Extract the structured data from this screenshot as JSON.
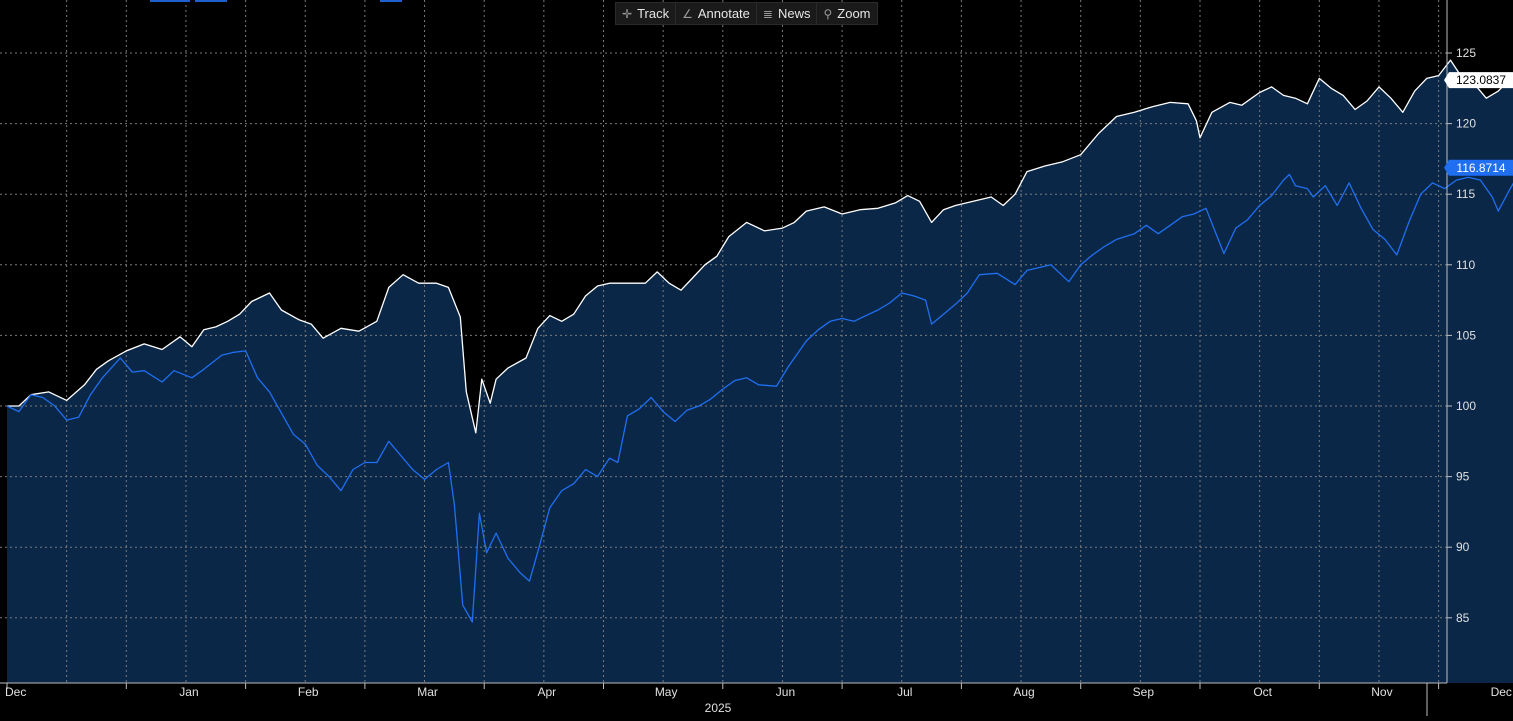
{
  "toolbar": {
    "track_label": "Track",
    "annotate_label": "Annotate",
    "news_label": "News",
    "zoom_label": "Zoom"
  },
  "colors": {
    "background": "#000000",
    "fill": "#0a2748",
    "white_series": "#ffffff",
    "blue_series": "#1f6ff0",
    "grid": "#7a7a7a"
  },
  "chart_data": {
    "type": "line",
    "xlabel": "2025",
    "ylim": [
      80,
      128
    ],
    "yticks": [
      85,
      90,
      95,
      100,
      105,
      110,
      115,
      120,
      125
    ],
    "month_labels": [
      "Dec",
      "Jan",
      "Feb",
      "Mar",
      "Apr",
      "May",
      "Jun",
      "Jul",
      "Aug",
      "Sep",
      "Oct",
      "Nov",
      "Dec"
    ],
    "x_unit": "months since start of Dec 2024",
    "series": [
      {
        "name": "White series",
        "last_value": "123.0837",
        "points": [
          [
            0.0,
            100.0
          ],
          [
            0.1,
            100.0
          ],
          [
            0.2,
            100.8
          ],
          [
            0.35,
            101.0
          ],
          [
            0.5,
            100.4
          ],
          [
            0.65,
            101.5
          ],
          [
            0.75,
            102.6
          ],
          [
            0.85,
            103.2
          ],
          [
            1.0,
            103.9
          ],
          [
            1.15,
            104.4
          ],
          [
            1.3,
            104.0
          ],
          [
            1.45,
            104.9
          ],
          [
            1.55,
            104.2
          ],
          [
            1.65,
            105.4
          ],
          [
            1.75,
            105.6
          ],
          [
            1.85,
            106.0
          ],
          [
            1.95,
            106.5
          ],
          [
            2.05,
            107.4
          ],
          [
            2.2,
            108.0
          ],
          [
            2.3,
            106.8
          ],
          [
            2.45,
            106.1
          ],
          [
            2.55,
            105.8
          ],
          [
            2.65,
            104.8
          ],
          [
            2.8,
            105.5
          ],
          [
            2.95,
            105.3
          ],
          [
            3.1,
            106.0
          ],
          [
            3.2,
            108.4
          ],
          [
            3.32,
            109.3
          ],
          [
            3.45,
            108.7
          ],
          [
            3.6,
            108.7
          ],
          [
            3.7,
            108.4
          ],
          [
            3.8,
            106.3
          ],
          [
            3.85,
            101.0
          ],
          [
            3.93,
            98.1
          ],
          [
            3.98,
            101.9
          ],
          [
            4.05,
            100.2
          ],
          [
            4.1,
            101.9
          ],
          [
            4.2,
            102.7
          ],
          [
            4.35,
            103.4
          ],
          [
            4.45,
            105.5
          ],
          [
            4.55,
            106.4
          ],
          [
            4.65,
            106.0
          ],
          [
            4.75,
            106.5
          ],
          [
            4.85,
            107.8
          ],
          [
            4.95,
            108.5
          ],
          [
            5.05,
            108.7
          ],
          [
            5.2,
            108.7
          ],
          [
            5.35,
            108.7
          ],
          [
            5.45,
            109.5
          ],
          [
            5.55,
            108.7
          ],
          [
            5.65,
            108.2
          ],
          [
            5.75,
            109.1
          ],
          [
            5.85,
            110.0
          ],
          [
            5.95,
            110.6
          ],
          [
            6.05,
            112.0
          ],
          [
            6.2,
            113.0
          ],
          [
            6.35,
            112.4
          ],
          [
            6.5,
            112.6
          ],
          [
            6.6,
            113.0
          ],
          [
            6.7,
            113.8
          ],
          [
            6.85,
            114.1
          ],
          [
            7.0,
            113.6
          ],
          [
            7.15,
            113.9
          ],
          [
            7.3,
            114.0
          ],
          [
            7.45,
            114.4
          ],
          [
            7.55,
            114.9
          ],
          [
            7.65,
            114.5
          ],
          [
            7.75,
            113.0
          ],
          [
            7.85,
            113.9
          ],
          [
            7.95,
            114.2
          ],
          [
            8.1,
            114.5
          ],
          [
            8.25,
            114.8
          ],
          [
            8.35,
            114.2
          ],
          [
            8.45,
            115.0
          ],
          [
            8.55,
            116.6
          ],
          [
            8.7,
            117.0
          ],
          [
            8.85,
            117.3
          ],
          [
            9.0,
            117.8
          ],
          [
            9.15,
            119.3
          ],
          [
            9.3,
            120.5
          ],
          [
            9.45,
            120.8
          ],
          [
            9.6,
            121.2
          ],
          [
            9.75,
            121.5
          ],
          [
            9.9,
            121.4
          ],
          [
            9.97,
            120.2
          ],
          [
            10.0,
            119.0
          ],
          [
            10.1,
            120.8
          ],
          [
            10.25,
            121.5
          ],
          [
            10.35,
            121.3
          ],
          [
            10.5,
            122.2
          ],
          [
            10.6,
            122.6
          ],
          [
            10.7,
            122.0
          ],
          [
            10.8,
            121.8
          ],
          [
            10.9,
            121.4
          ],
          [
            11.0,
            123.2
          ],
          [
            11.1,
            122.5
          ],
          [
            11.2,
            122.0
          ],
          [
            11.3,
            121.0
          ],
          [
            11.4,
            121.6
          ],
          [
            11.5,
            122.6
          ],
          [
            11.6,
            121.8
          ],
          [
            11.7,
            120.8
          ],
          [
            11.8,
            122.3
          ],
          [
            11.9,
            123.2
          ],
          [
            12.0,
            123.4
          ],
          [
            12.1,
            124.5
          ],
          [
            12.2,
            123.2
          ],
          [
            12.3,
            122.8
          ],
          [
            12.4,
            121.8
          ],
          [
            12.5,
            122.3
          ],
          [
            12.6,
            123.2
          ],
          [
            12.7,
            123.4
          ],
          [
            12.8,
            123.25
          ],
          [
            12.85,
            123.08
          ]
        ]
      },
      {
        "name": "Blue series",
        "last_value": "116.8714",
        "points": [
          [
            0.0,
            100.0
          ],
          [
            0.1,
            99.6
          ],
          [
            0.2,
            100.8
          ],
          [
            0.3,
            100.6
          ],
          [
            0.4,
            100.0
          ],
          [
            0.5,
            99.0
          ],
          [
            0.6,
            99.2
          ],
          [
            0.7,
            100.8
          ],
          [
            0.8,
            102.0
          ],
          [
            0.95,
            103.4
          ],
          [
            1.05,
            102.4
          ],
          [
            1.15,
            102.5
          ],
          [
            1.3,
            101.7
          ],
          [
            1.4,
            102.5
          ],
          [
            1.55,
            102.0
          ],
          [
            1.65,
            102.6
          ],
          [
            1.8,
            103.6
          ],
          [
            1.9,
            103.8
          ],
          [
            2.0,
            103.9
          ],
          [
            2.1,
            102.0
          ],
          [
            2.2,
            101.0
          ],
          [
            2.3,
            99.5
          ],
          [
            2.4,
            98.0
          ],
          [
            2.5,
            97.3
          ],
          [
            2.6,
            95.8
          ],
          [
            2.7,
            95.0
          ],
          [
            2.8,
            94.0
          ],
          [
            2.9,
            95.5
          ],
          [
            3.0,
            96.0
          ],
          [
            3.1,
            96.0
          ],
          [
            3.2,
            97.5
          ],
          [
            3.3,
            96.5
          ],
          [
            3.4,
            95.5
          ],
          [
            3.5,
            94.8
          ],
          [
            3.6,
            95.5
          ],
          [
            3.7,
            96.0
          ],
          [
            3.75,
            93.0
          ],
          [
            3.82,
            85.9
          ],
          [
            3.9,
            84.7
          ],
          [
            3.96,
            92.4
          ],
          [
            4.02,
            89.6
          ],
          [
            4.1,
            91.0
          ],
          [
            4.2,
            89.2
          ],
          [
            4.3,
            88.2
          ],
          [
            4.38,
            87.6
          ],
          [
            4.45,
            89.7
          ],
          [
            4.55,
            92.8
          ],
          [
            4.65,
            94.0
          ],
          [
            4.75,
            94.5
          ],
          [
            4.85,
            95.5
          ],
          [
            4.95,
            95.0
          ],
          [
            5.05,
            96.3
          ],
          [
            5.12,
            96.0
          ],
          [
            5.2,
            99.3
          ],
          [
            5.3,
            99.8
          ],
          [
            5.4,
            100.6
          ],
          [
            5.5,
            99.6
          ],
          [
            5.6,
            98.9
          ],
          [
            5.7,
            99.7
          ],
          [
            5.8,
            100.0
          ],
          [
            5.9,
            100.5
          ],
          [
            6.0,
            101.2
          ],
          [
            6.1,
            101.8
          ],
          [
            6.2,
            102.0
          ],
          [
            6.3,
            101.5
          ],
          [
            6.45,
            101.4
          ],
          [
            6.55,
            102.8
          ],
          [
            6.7,
            104.6
          ],
          [
            6.8,
            105.4
          ],
          [
            6.9,
            106.0
          ],
          [
            7.0,
            106.2
          ],
          [
            7.1,
            106.0
          ],
          [
            7.2,
            106.4
          ],
          [
            7.3,
            106.8
          ],
          [
            7.4,
            107.3
          ],
          [
            7.5,
            108.0
          ],
          [
            7.6,
            107.8
          ],
          [
            7.7,
            107.5
          ],
          [
            7.75,
            105.8
          ],
          [
            7.85,
            106.5
          ],
          [
            7.95,
            107.2
          ],
          [
            8.05,
            108.0
          ],
          [
            8.15,
            109.3
          ],
          [
            8.3,
            109.4
          ],
          [
            8.45,
            108.6
          ],
          [
            8.55,
            109.6
          ],
          [
            8.65,
            109.8
          ],
          [
            8.75,
            110.0
          ],
          [
            8.9,
            108.8
          ],
          [
            9.0,
            110.0
          ],
          [
            9.1,
            110.7
          ],
          [
            9.2,
            111.3
          ],
          [
            9.3,
            111.8
          ],
          [
            9.45,
            112.2
          ],
          [
            9.55,
            112.8
          ],
          [
            9.65,
            112.2
          ],
          [
            9.75,
            112.8
          ],
          [
            9.85,
            113.4
          ],
          [
            9.95,
            113.6
          ],
          [
            10.05,
            114.0
          ],
          [
            10.12,
            112.5
          ],
          [
            10.2,
            110.8
          ],
          [
            10.3,
            112.6
          ],
          [
            10.4,
            113.2
          ],
          [
            10.5,
            114.2
          ],
          [
            10.6,
            114.9
          ],
          [
            10.7,
            116.0
          ],
          [
            10.75,
            116.4
          ],
          [
            10.8,
            115.6
          ],
          [
            10.9,
            115.4
          ],
          [
            10.95,
            114.8
          ],
          [
            11.05,
            115.6
          ],
          [
            11.15,
            114.2
          ],
          [
            11.25,
            115.8
          ],
          [
            11.35,
            114.0
          ],
          [
            11.45,
            112.5
          ],
          [
            11.55,
            111.8
          ],
          [
            11.65,
            110.7
          ],
          [
            11.75,
            113.0
          ],
          [
            11.85,
            115.0
          ],
          [
            11.95,
            115.8
          ],
          [
            12.05,
            115.4
          ],
          [
            12.15,
            116.0
          ],
          [
            12.25,
            116.2
          ],
          [
            12.35,
            116.0
          ],
          [
            12.45,
            114.8
          ],
          [
            12.5,
            113.8
          ],
          [
            12.6,
            115.4
          ],
          [
            12.7,
            116.8
          ],
          [
            12.8,
            117.4
          ],
          [
            12.85,
            116.87
          ]
        ]
      }
    ]
  }
}
